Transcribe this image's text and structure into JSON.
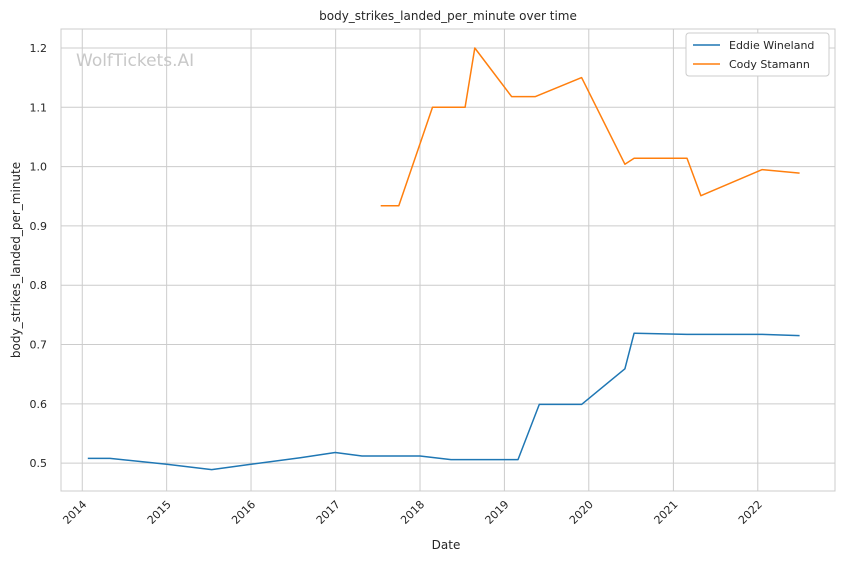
{
  "chart_data": {
    "type": "line",
    "title": "body_strikes_landed_per_minute over time",
    "xlabel": "Date",
    "ylabel": "body_strikes_landed_per_minute",
    "watermark": "WolfTickets.AI",
    "x_ticks": [
      "2014",
      "2015",
      "2016",
      "2017",
      "2018",
      "2019",
      "2020",
      "2021",
      "2022"
    ],
    "y_ticks": [
      "0.5",
      "0.6",
      "0.7",
      "0.8",
      "0.9",
      "1.0",
      "1.1",
      "1.2"
    ],
    "xlim": [
      "2013-10-01",
      "2022-12-01"
    ],
    "ylim": [
      0.453,
      1.232
    ],
    "grid": true,
    "legend_position": "top-right",
    "series": [
      {
        "name": "Eddie Wineland",
        "color": "#1f77b4",
        "points": [
          [
            "2014-01-25",
            0.508
          ],
          [
            "2014-05-01",
            0.508
          ],
          [
            "2015-01-01",
            0.498
          ],
          [
            "2015-07-15",
            0.489
          ],
          [
            "2016-01-01",
            0.498
          ],
          [
            "2016-08-01",
            0.509
          ],
          [
            "2016-12-30",
            0.518
          ],
          [
            "2017-04-25",
            0.512
          ],
          [
            "2018-01-01",
            0.512
          ],
          [
            "2018-05-15",
            0.506
          ],
          [
            "2019-03-01",
            0.506
          ],
          [
            "2019-06-01",
            0.599
          ],
          [
            "2019-12-01",
            0.599
          ],
          [
            "2020-06-05",
            0.659
          ],
          [
            "2020-07-15",
            0.719
          ],
          [
            "2021-03-01",
            0.717
          ],
          [
            "2022-01-20",
            0.717
          ],
          [
            "2022-07-01",
            0.715
          ]
        ]
      },
      {
        "name": "Cody Stamann",
        "color": "#ff7f0e",
        "points": [
          [
            "2017-07-15",
            0.934
          ],
          [
            "2017-10-01",
            0.934
          ],
          [
            "2018-02-24",
            1.1
          ],
          [
            "2018-07-15",
            1.1
          ],
          [
            "2018-08-26",
            1.2
          ],
          [
            "2019-02-01",
            1.118
          ],
          [
            "2019-05-15",
            1.118
          ],
          [
            "2019-12-01",
            1.15
          ],
          [
            "2020-06-05",
            1.004
          ],
          [
            "2020-07-15",
            1.014
          ],
          [
            "2021-03-01",
            1.014
          ],
          [
            "2021-04-30",
            0.951
          ],
          [
            "2022-01-20",
            0.995
          ],
          [
            "2022-07-01",
            0.989
          ]
        ]
      }
    ]
  }
}
